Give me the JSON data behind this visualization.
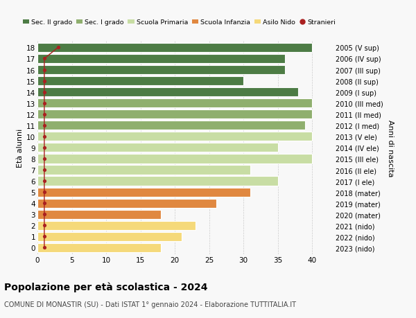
{
  "ages": [
    0,
    1,
    2,
    3,
    4,
    5,
    6,
    7,
    8,
    9,
    10,
    11,
    12,
    13,
    14,
    15,
    16,
    17,
    18
  ],
  "right_labels": [
    "2023 (nido)",
    "2022 (nido)",
    "2021 (nido)",
    "2020 (mater)",
    "2019 (mater)",
    "2018 (mater)",
    "2017 (I ele)",
    "2016 (II ele)",
    "2015 (III ele)",
    "2014 (IV ele)",
    "2013 (V ele)",
    "2012 (I med)",
    "2011 (II med)",
    "2010 (III med)",
    "2009 (I sup)",
    "2008 (II sup)",
    "2007 (III sup)",
    "2006 (IV sup)",
    "2005 (V sup)"
  ],
  "bar_values": [
    18,
    21,
    23,
    18,
    26,
    31,
    35,
    31,
    40,
    35,
    40,
    39,
    40,
    40,
    38,
    30,
    36,
    36,
    40
  ],
  "stranieri": [
    1,
    1,
    1,
    1,
    1,
    1,
    1,
    1,
    1,
    1,
    1,
    1,
    1,
    1,
    1,
    1,
    1,
    1,
    3
  ],
  "bar_colors": [
    "#f5d97a",
    "#f5d97a",
    "#f5d97a",
    "#e08840",
    "#e08840",
    "#e08840",
    "#c8dda4",
    "#c8dda4",
    "#c8dda4",
    "#c8dda4",
    "#c8dda4",
    "#8faf6e",
    "#8faf6e",
    "#8faf6e",
    "#4d7c45",
    "#4d7c45",
    "#4d7c45",
    "#4d7c45",
    "#4d7c45"
  ],
  "legend_labels": [
    "Sec. II grado",
    "Sec. I grado",
    "Scuola Primaria",
    "Scuola Infanzia",
    "Asilo Nido",
    "Stranieri"
  ],
  "legend_colors": [
    "#4d7c45",
    "#8faf6e",
    "#c8dda4",
    "#e08840",
    "#f5d97a",
    "#aa2020"
  ],
  "title": "Popolazione per età scolastica - 2024",
  "subtitle": "COMUNE DI MONASTIR (SU) - Dati ISTAT 1° gennaio 2024 - Elaborazione TUTTITALIA.IT",
  "ylabel": "Età alunni",
  "right_ylabel": "Anni di nascita",
  "xlim_max": 43,
  "xticks": [
    0,
    5,
    10,
    15,
    20,
    25,
    30,
    35,
    40
  ],
  "bg_color": "#f8f8f8",
  "bar_height": 0.82,
  "stranieri_color": "#aa2020",
  "grid_color": "#cccccc"
}
